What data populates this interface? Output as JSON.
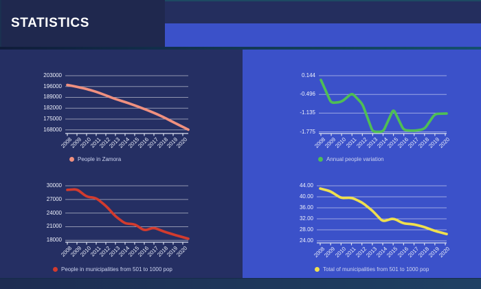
{
  "header": {
    "title": "STATISTICS"
  },
  "colors": {
    "base_bg": "#252f63",
    "title_panel_bg": "#1f284e",
    "header_band_dark": "#242e5e",
    "accent_blue": "#3b51c9",
    "grid_line": "rgba(255,255,255,0.5)",
    "axis_line": "#dde2f2",
    "tick_label": "#eef1fb",
    "legend_label": "#ccd3ef",
    "title_text": "#ffffff"
  },
  "chart_data": [
    {
      "type": "line",
      "series_name": "People in Zamora",
      "color": "#f0907f",
      "categories": [
        "2008",
        "2009",
        "2010",
        "2011",
        "2012",
        "2013",
        "2014",
        "2015",
        "2016",
        "2017",
        "2018",
        "2019",
        "2020"
      ],
      "values": [
        197000,
        195800,
        194400,
        192600,
        190300,
        187900,
        186000,
        183800,
        181500,
        179000,
        176200,
        173000,
        169900
      ],
      "ytick_labels": [
        "203000",
        "196000",
        "189000",
        "182000",
        "175000",
        "168000"
      ],
      "ylim": [
        168000,
        203000
      ],
      "grid": true,
      "legend_position": "bottom"
    },
    {
      "type": "line",
      "series_name": "Annual people variation",
      "color": "#4fbe55",
      "categories": [
        "2008",
        "2009",
        "2010",
        "2011",
        "2012",
        "2013",
        "2014",
        "2015",
        "2016",
        "2017",
        "2018",
        "2019",
        "2020"
      ],
      "values": [
        0.0,
        -0.79,
        -0.75,
        -0.45,
        -0.82,
        -1.775,
        -1.775,
        -1.0,
        -1.72,
        -1.74,
        -1.68,
        -1.16,
        -1.15
      ],
      "ytick_labels": [
        "0.144",
        "-0.496",
        "-1.135",
        "-1.775"
      ],
      "ylim": [
        -1.775,
        0.144
      ],
      "grid": true,
      "legend_position": "bottom"
    },
    {
      "type": "line",
      "series_name": "People in municipalities from 501 to 1000 pop",
      "color": "#d23b2e",
      "categories": [
        "2008",
        "2009",
        "2010",
        "2011",
        "2012",
        "2013",
        "2014",
        "2015",
        "2016",
        "2017",
        "2018",
        "2019",
        "2020"
      ],
      "values": [
        29100,
        29250,
        27600,
        27300,
        25600,
        23300,
        21700,
        21550,
        20150,
        20800,
        19950,
        19300,
        18700
      ],
      "ytick_labels": [
        "30000",
        "27000",
        "24000",
        "21000",
        "18000"
      ],
      "ylim": [
        18000,
        30000
      ],
      "grid": true,
      "legend_position": "bottom"
    },
    {
      "type": "line",
      "series_name": "Total of municipalities from 501 to 1000 pop",
      "color": "#efdf4e",
      "categories": [
        "2008",
        "2009",
        "2010",
        "2011",
        "2012",
        "2013",
        "2014",
        "2015",
        "2016",
        "2017",
        "2018",
        "2019",
        "2020"
      ],
      "values": [
        43.0,
        42.0,
        39.5,
        39.7,
        38.0,
        35.0,
        31.0,
        32.2,
        30.3,
        30.0,
        29.0,
        27.6,
        26.6
      ],
      "ytick_labels": [
        "44.00",
        "40.00",
        "36.00",
        "32.00",
        "28.00",
        "24.00"
      ],
      "ylim": [
        24,
        44
      ],
      "grid": true,
      "legend_position": "bottom"
    }
  ]
}
